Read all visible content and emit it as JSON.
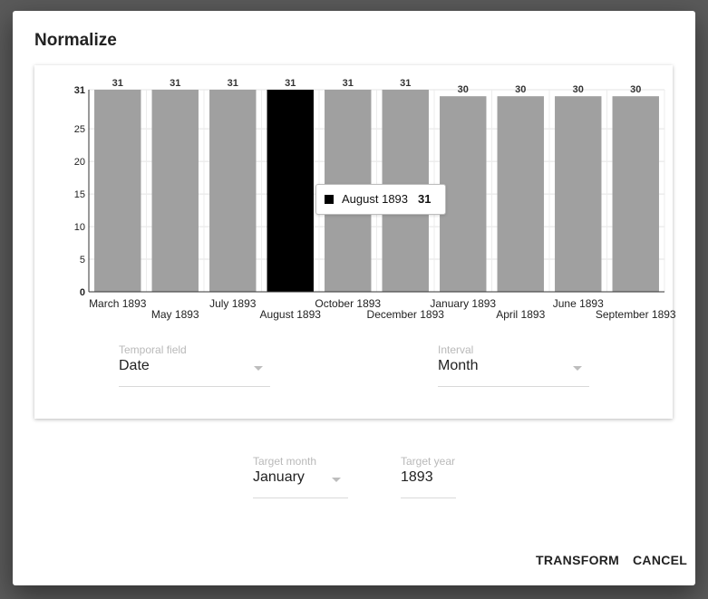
{
  "dialog": {
    "title": "Normalize",
    "transform_label": "TRANSFORM",
    "cancel_label": "CANCEL"
  },
  "chart_data": {
    "type": "bar",
    "categories": [
      "March 1893",
      "May 1893",
      "July 1893",
      "August 1893",
      "October 1893",
      "December 1893",
      "January 1893",
      "April 1893",
      "June 1893",
      "September 1893"
    ],
    "values": [
      31,
      31,
      31,
      31,
      31,
      31,
      30,
      30,
      30,
      30
    ],
    "highlighted": "August 1893",
    "ylim": [
      0,
      31
    ],
    "yticks": [
      0,
      5,
      10,
      15,
      20,
      25,
      31
    ],
    "bar_color": "#a0a0a0",
    "highlight_color": "#000000",
    "grid": true
  },
  "tooltip": {
    "label": "August 1893",
    "value": "31"
  },
  "temporal_field": {
    "label": "Temporal field",
    "value": "Date"
  },
  "interval": {
    "label": "Interval",
    "value": "Month"
  },
  "target_month": {
    "label": "Target month",
    "value": "January"
  },
  "target_year": {
    "label": "Target year",
    "value": "1893"
  }
}
